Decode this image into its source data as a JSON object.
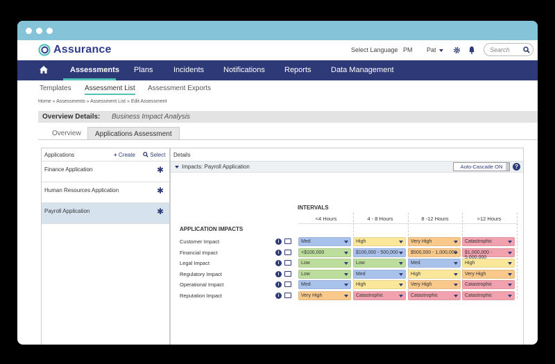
{
  "brand": {
    "name": "Assurance"
  },
  "topbar": {
    "language": "Select Language",
    "pm": "PM",
    "user": "Pat",
    "search_placeholder": "Search"
  },
  "nav": [
    "Assessments",
    "Plans",
    "Incidents",
    "Notifications",
    "Reports",
    "Data Management"
  ],
  "subnav": [
    "Templates",
    "Assessment List",
    "Assessment Exports"
  ],
  "breadcrumb": "Home » Assessments » Assessment List » Edit Assessment",
  "overview": {
    "label": "Overview Details:",
    "value": "Business Impact Analysis"
  },
  "tabs": [
    "Overview",
    "Applications Assessment"
  ],
  "left_panel": {
    "title": "Applications",
    "create": "Create",
    "select": "Select",
    "items": [
      "Finance Application",
      "Human Resources Application",
      "Payroll Application"
    ]
  },
  "right_panel": {
    "title": "Details",
    "impacts_title": "Impacts: Payroll Application",
    "cascade": "Auto-Cascade ON",
    "help": "?",
    "intervals_label": "INTERVALS",
    "impacts_label": "APPLICATION IMPACTS",
    "columns": [
      "<4 Hours",
      "4 - 8 Hours",
      "8 -12 Hours",
      ">12 Hours"
    ],
    "rows": [
      {
        "label": "Customer Impact",
        "cells": [
          "Med",
          "High",
          "Very High",
          "Catastrophic"
        ]
      },
      {
        "label": "Financial Impact",
        "cells": [
          "<$100,000",
          "$100,000 - 500,000",
          "$500,000 - 1,000,000",
          "$1,000,000 - 5,000,000"
        ]
      },
      {
        "label": "Legal Impact",
        "cells": [
          "Low",
          "Low",
          "Med",
          "High"
        ]
      },
      {
        "label": "Regulatory Impact",
        "cells": [
          "Low",
          "Med",
          "High",
          "Very High"
        ]
      },
      {
        "label": "Operational Impact",
        "cells": [
          "Med",
          "High",
          "Very High",
          "Catastrophic"
        ]
      },
      {
        "label": "Reputation Impact",
        "cells": [
          "Very High",
          "Catastrophic",
          "Catastrophic",
          "Catastrophic"
        ]
      }
    ]
  },
  "colors": {
    "nav_bg": "#2e3a78",
    "accent": "#4fc3b5",
    "chrome": "#85c3d8"
  }
}
